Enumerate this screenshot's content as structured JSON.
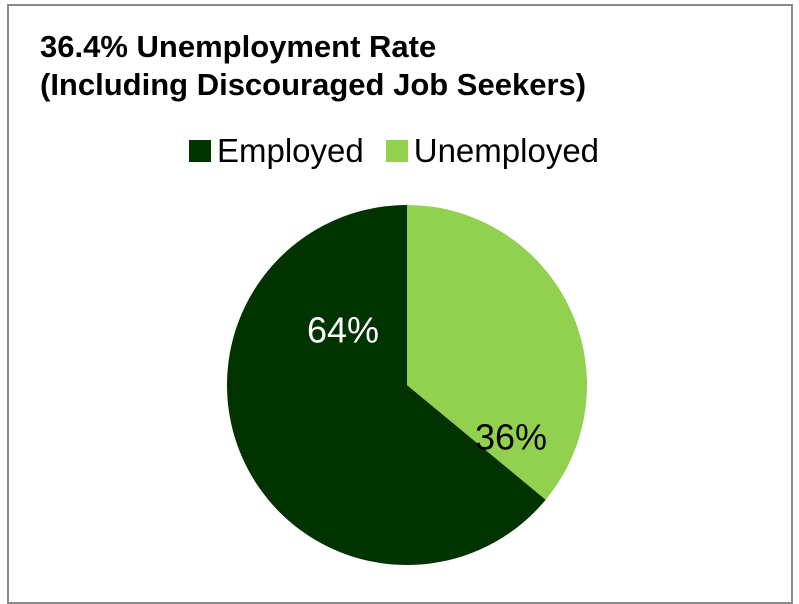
{
  "chart_data": {
    "type": "pie",
    "title_lines": [
      "36.4% Unemployment Rate",
      "(Including Discouraged Job Seekers)"
    ],
    "categories": [
      "Employed",
      "Unemployed"
    ],
    "values": [
      64,
      36
    ],
    "data_labels": [
      "64%",
      "36%"
    ],
    "colors": [
      "#003300",
      "#92d050"
    ],
    "label_colors": [
      "#ffffff",
      "#000000"
    ],
    "legend_position": "top"
  }
}
